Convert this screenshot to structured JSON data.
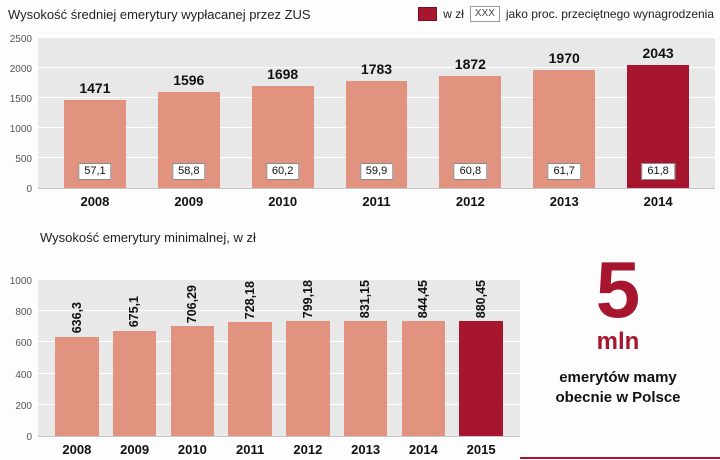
{
  "page": {
    "title": "Wysokość średniej emerytury wypłacanej przez ZUS",
    "legend": {
      "amount_label": "w zł",
      "percent_box": "XXX",
      "percent_label": "jako proc. przeciętnego wynagrodzenia"
    },
    "subtitle2": "Wysokość emerytury minimalnej, w zł",
    "stat": {
      "number": "5",
      "unit": "mln",
      "caption_line1": "emerytów mamy",
      "caption_line2": "obecnie w Polsce"
    }
  },
  "colors": {
    "bar": "#e2937f",
    "bar_highlight": "#a8152f",
    "plot_bg": "#e8e8e8"
  },
  "chart_data": [
    {
      "type": "bar",
      "title": "Wysokość średniej emerytury wypłacanej przez ZUS",
      "categories": [
        "2008",
        "2009",
        "2010",
        "2011",
        "2012",
        "2013",
        "2014"
      ],
      "series": [
        {
          "name": "w zł",
          "values": [
            1471,
            1596,
            1698,
            1783,
            1872,
            1970,
            2043
          ]
        },
        {
          "name": "jako proc. przeciętnego wynagrodzenia",
          "values": [
            "57,1",
            "58,8",
            "60,2",
            "59,9",
            "60,8",
            "61,7",
            "61,8"
          ]
        }
      ],
      "value_labels": [
        "1471",
        "1596",
        "1698",
        "1783",
        "1872",
        "1970",
        "2043"
      ],
      "ylim": [
        0,
        2500
      ],
      "yticks": [
        0,
        500,
        1000,
        1500,
        2000,
        2500
      ],
      "highlight_index": 6,
      "grid": true,
      "legend_position": "top-right"
    },
    {
      "type": "bar",
      "title": "Wysokość emerytury minimalnej, w zł",
      "categories": [
        "2008",
        "2009",
        "2010",
        "2011",
        "2012",
        "2013",
        "2014",
        "2015"
      ],
      "values": [
        636.3,
        675.1,
        706.29,
        728.18,
        799.18,
        831.15,
        844.45,
        880.45
      ],
      "value_labels": [
        "636,3",
        "675,1",
        "706,29",
        "728,18",
        "799,18",
        "831,15",
        "844,45",
        "880,45"
      ],
      "ylim": [
        0,
        1000
      ],
      "yticks": [
        0,
        200,
        400,
        600,
        800,
        1000
      ],
      "highlight_index": 7,
      "grid": true
    }
  ]
}
